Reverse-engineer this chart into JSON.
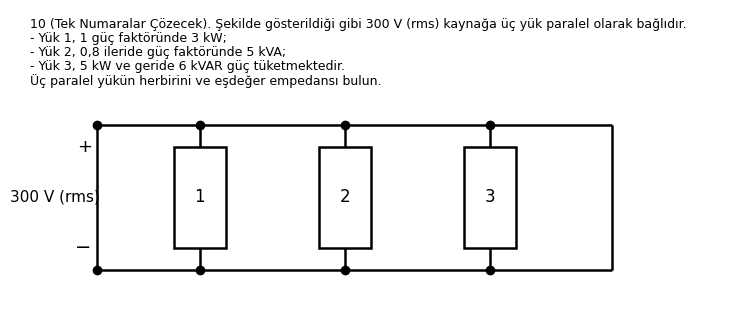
{
  "title_text": "10 (Tek Numaralar Çözecek). Şekilde gösterildiği gibi 300 V (rms) kaynağa üç yük paralel olarak bağlıdır.",
  "line1": "- Yük 1, 1 güç faktöründe 3 kW;",
  "line2": "- Yük 2, 0,8 ileride güç faktöründe 5 kVA;",
  "line3": "- Yük 3, 5 kW ve geride 6 kVAR güç tüketmektedir.",
  "line4": "Üç paralel yükün herbirini ve eşdeğer empedansı bulun.",
  "voltage_label": "300 V (rms)",
  "plus_label": "+",
  "minus_label": "−",
  "load_labels": [
    "1",
    "2",
    "3"
  ],
  "bg_color": "#ffffff",
  "text_color": "#000000",
  "line_color": "#000000",
  "font_size_text": 9.0,
  "font_size_circuit": 12,
  "font_size_voltage": 11
}
